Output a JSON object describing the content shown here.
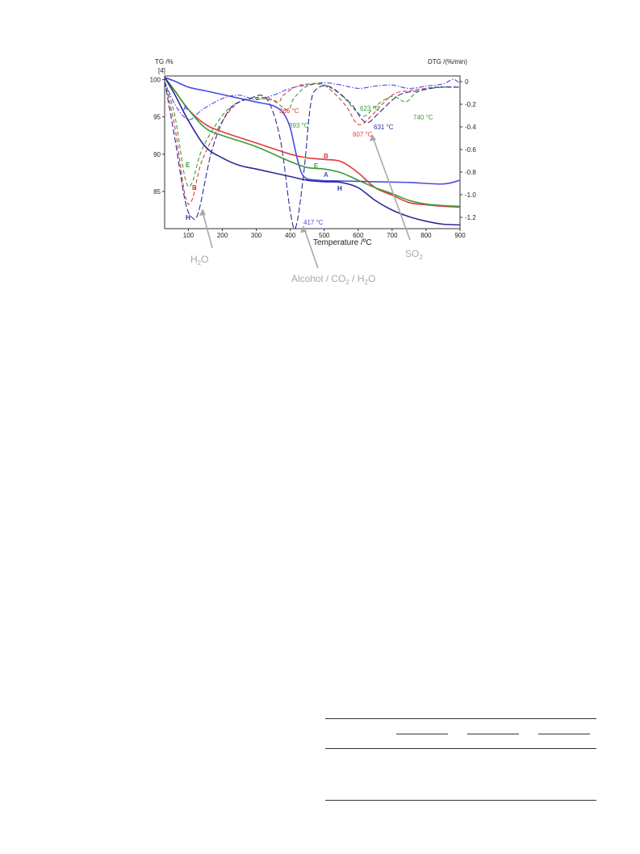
{
  "chart_data": {
    "type": "line",
    "xlabel": "Temperature /ºC",
    "ylabel_left": "TG /%",
    "ylabel_left_ref": "[4]",
    "ylabel_right": "DTG /(%/min)",
    "xlim": [
      30,
      900
    ],
    "ylim_left": [
      80,
      100.5
    ],
    "ylim_right": [
      -1.3,
      0.05
    ],
    "x_ticks": [
      "100",
      "200",
      "300",
      "400",
      "500",
      "600",
      "700",
      "800",
      "900"
    ],
    "y_left_ticks": [
      "100",
      "95",
      "90",
      "85"
    ],
    "y_right_ticks": [
      "0",
      "-0.2",
      "-0.4",
      "-0.6",
      "-0.8",
      "-1.0",
      "-1.2"
    ],
    "colors": {
      "A": "#4a4ae6",
      "B": "#e23a3a",
      "E": "#3a9a3a",
      "H": "#2a2a9a",
      "annotation": "#a8a8a8"
    },
    "series_tg": [
      {
        "name": "A",
        "points": [
          [
            30,
            100.3
          ],
          [
            60,
            99.8
          ],
          [
            100,
            99.0
          ],
          [
            150,
            98.5
          ],
          [
            200,
            98.0
          ],
          [
            250,
            97.5
          ],
          [
            300,
            97.0
          ],
          [
            350,
            96.5
          ],
          [
            380,
            95.5
          ],
          [
            400,
            93.5
          ],
          [
            420,
            89.5
          ],
          [
            440,
            87.0
          ],
          [
            480,
            86.5
          ],
          [
            550,
            86.4
          ],
          [
            650,
            86.3
          ],
          [
            750,
            86.2
          ],
          [
            850,
            86.0
          ],
          [
            900,
            86.5
          ]
        ]
      },
      {
        "name": "B",
        "points": [
          [
            30,
            100.3
          ],
          [
            60,
            98.5
          ],
          [
            100,
            96.0
          ],
          [
            150,
            94.0
          ],
          [
            200,
            93.0
          ],
          [
            300,
            91.5
          ],
          [
            400,
            90.0
          ],
          [
            450,
            89.5
          ],
          [
            500,
            89.3
          ],
          [
            550,
            89.0
          ],
          [
            600,
            87.5
          ],
          [
            650,
            85.5
          ],
          [
            700,
            84.5
          ],
          [
            750,
            83.5
          ],
          [
            800,
            83.2
          ],
          [
            850,
            83.0
          ],
          [
            900,
            82.9
          ]
        ]
      },
      {
        "name": "E",
        "points": [
          [
            30,
            100.3
          ],
          [
            60,
            98.5
          ],
          [
            100,
            96.0
          ],
          [
            150,
            93.5
          ],
          [
            200,
            92.5
          ],
          [
            300,
            91.0
          ],
          [
            400,
            89.0
          ],
          [
            450,
            88.2
          ],
          [
            500,
            88.0
          ],
          [
            550,
            87.5
          ],
          [
            600,
            86.5
          ],
          [
            650,
            85.5
          ],
          [
            700,
            84.7
          ],
          [
            750,
            83.8
          ],
          [
            800,
            83.3
          ],
          [
            850,
            83.1
          ],
          [
            900,
            83.0
          ]
        ]
      },
      {
        "name": "H",
        "points": [
          [
            30,
            100.3
          ],
          [
            60,
            98.0
          ],
          [
            100,
            94.5
          ],
          [
            150,
            91.0
          ],
          [
            200,
            89.5
          ],
          [
            250,
            88.5
          ],
          [
            300,
            88.0
          ],
          [
            350,
            87.5
          ],
          [
            400,
            87.0
          ],
          [
            450,
            86.5
          ],
          [
            500,
            86.3
          ],
          [
            550,
            86.2
          ],
          [
            600,
            85.5
          ],
          [
            650,
            83.8
          ],
          [
            700,
            82.5
          ],
          [
            750,
            81.6
          ],
          [
            800,
            81.0
          ],
          [
            850,
            80.6
          ],
          [
            900,
            80.5
          ]
        ]
      }
    ],
    "series_dtg": [
      {
        "name": "A",
        "points": [
          [
            30,
            0.0
          ],
          [
            60,
            -0.2
          ],
          [
            90,
            -0.32
          ],
          [
            110,
            -0.33
          ],
          [
            140,
            -0.25
          ],
          [
            200,
            -0.15
          ],
          [
            250,
            -0.12
          ],
          [
            300,
            -0.16
          ],
          [
            350,
            -0.12
          ],
          [
            400,
            -0.06
          ],
          [
            450,
            -0.03
          ],
          [
            500,
            -0.01
          ],
          [
            550,
            -0.03
          ],
          [
            600,
            -0.06
          ],
          [
            650,
            -0.04
          ],
          [
            700,
            -0.03
          ],
          [
            750,
            -0.06
          ],
          [
            800,
            -0.04
          ],
          [
            850,
            -0.02
          ],
          [
            880,
            0.02
          ],
          [
            900,
            -0.02
          ]
        ]
      },
      {
        "name": "B",
        "points": [
          [
            30,
            0.0
          ],
          [
            60,
            -0.4
          ],
          [
            90,
            -1.0
          ],
          [
            110,
            -1.05
          ],
          [
            140,
            -0.7
          ],
          [
            200,
            -0.35
          ],
          [
            250,
            -0.18
          ],
          [
            300,
            -0.14
          ],
          [
            340,
            -0.15
          ],
          [
            366,
            -0.18
          ],
          [
            380,
            -0.12
          ],
          [
            420,
            -0.04
          ],
          [
            460,
            -0.02
          ],
          [
            500,
            -0.03
          ],
          [
            560,
            -0.2
          ],
          [
            590,
            -0.35
          ],
          [
            607,
            -0.38
          ],
          [
            630,
            -0.33
          ],
          [
            700,
            -0.12
          ],
          [
            750,
            -0.08
          ],
          [
            800,
            -0.06
          ],
          [
            850,
            -0.05
          ],
          [
            900,
            -0.05
          ]
        ]
      },
      {
        "name": "E",
        "points": [
          [
            30,
            0.0
          ],
          [
            60,
            -0.3
          ],
          [
            90,
            -0.85
          ],
          [
            110,
            -0.9
          ],
          [
            140,
            -0.6
          ],
          [
            200,
            -0.3
          ],
          [
            250,
            -0.18
          ],
          [
            300,
            -0.15
          ],
          [
            350,
            -0.17
          ],
          [
            393,
            -0.25
          ],
          [
            410,
            -0.15
          ],
          [
            450,
            -0.04
          ],
          [
            500,
            -0.03
          ],
          [
            550,
            -0.12
          ],
          [
            600,
            -0.28
          ],
          [
            623,
            -0.3
          ],
          [
            650,
            -0.22
          ],
          [
            700,
            -0.13
          ],
          [
            740,
            -0.18
          ],
          [
            770,
            -0.1
          ],
          [
            820,
            -0.05
          ],
          [
            900,
            -0.05
          ]
        ]
      },
      {
        "name": "H",
        "points": [
          [
            30,
            0.0
          ],
          [
            60,
            -0.5
          ],
          [
            90,
            -1.05
          ],
          [
            110,
            -1.2
          ],
          [
            130,
            -1.15
          ],
          [
            170,
            -0.6
          ],
          [
            220,
            -0.25
          ],
          [
            280,
            -0.15
          ],
          [
            330,
            -0.15
          ],
          [
            370,
            -0.5
          ],
          [
            400,
            -1.15
          ],
          [
            417,
            -1.28
          ],
          [
            440,
            -0.8
          ],
          [
            460,
            -0.2
          ],
          [
            480,
            -0.06
          ],
          [
            520,
            -0.05
          ],
          [
            580,
            -0.2
          ],
          [
            610,
            -0.33
          ],
          [
            631,
            -0.36
          ],
          [
            660,
            -0.28
          ],
          [
            720,
            -0.12
          ],
          [
            780,
            -0.08
          ],
          [
            840,
            -0.05
          ],
          [
            900,
            -0.05
          ]
        ]
      }
    ],
    "peak_labels": [
      {
        "text": "366 °C",
        "series": "B"
      },
      {
        "text": "393 °C",
        "series": "E"
      },
      {
        "text": "417 °C",
        "series": "H"
      },
      {
        "text": "623 °C",
        "series": "E"
      },
      {
        "text": "740 °C",
        "series": "E"
      },
      {
        "text": "607 °C",
        "series": "B"
      },
      {
        "text": "631 °C",
        "series": "H"
      }
    ],
    "annotations": [
      {
        "text_main": "H",
        "sub": "2",
        "tail": "O"
      },
      {
        "text_main": "Alcohol / CO",
        "sub": "2",
        "tail": " / H",
        "sub2": "2",
        "tail2": "O"
      },
      {
        "text_main": "SO",
        "sub": "2",
        "tail": ""
      }
    ],
    "curve_letters": {
      "dtg_A": "A",
      "dtg_E": "E",
      "dtg_B": "B",
      "dtg_H": "H",
      "tg_B": "B",
      "tg_E": "E",
      "tg_A": "A",
      "tg_H": "H"
    }
  }
}
